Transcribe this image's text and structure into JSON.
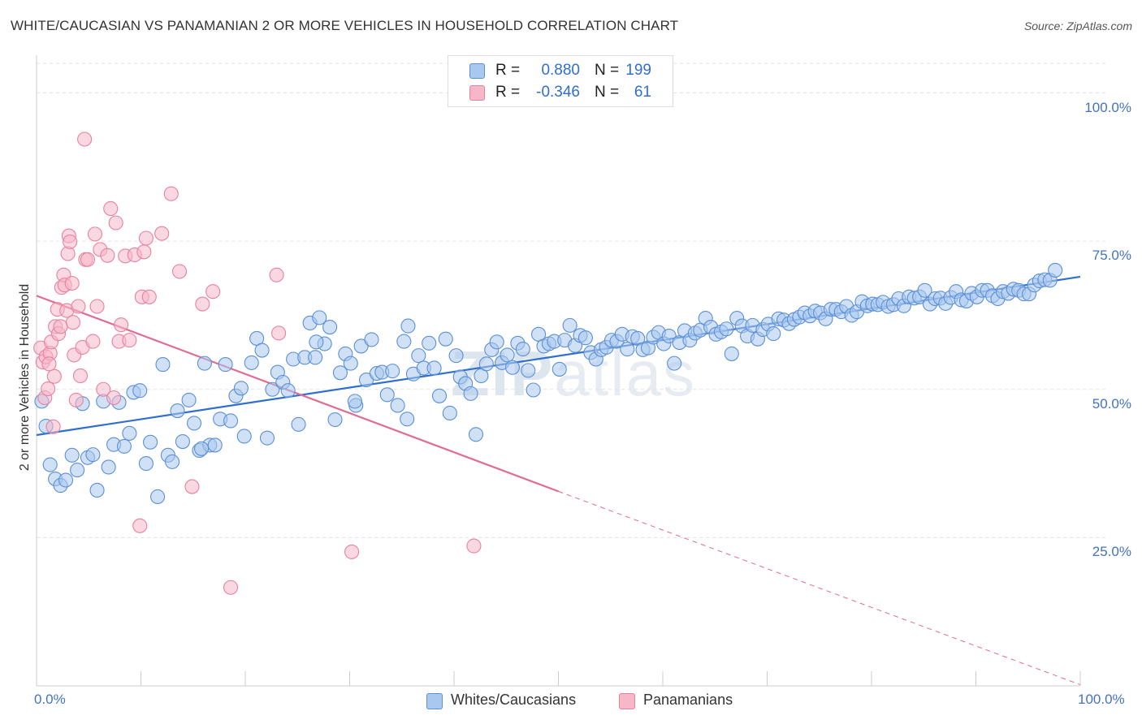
{
  "title": "WHITE/CAUCASIAN VS PANAMANIAN 2 OR MORE VEHICLES IN HOUSEHOLD CORRELATION CHART",
  "source": "Source: ZipAtlas.com",
  "watermark": {
    "zip": "ZIP",
    "atlas": "atlas"
  },
  "legend": {
    "rows": [
      {
        "r_label": "R =",
        "r_value": "0.880",
        "n_label": "N =",
        "n_value": "199",
        "color": "#a9c8ef"
      },
      {
        "r_label": "R =",
        "r_value": "-0.346",
        "n_label": "N =",
        "n_value": "61",
        "color": "#f6b8c9"
      }
    ]
  },
  "chart_data": {
    "type": "scatter",
    "title": "WHITE/CAUCASIAN VS PANAMANIAN 2 OR MORE VEHICLES IN HOUSEHOLD CORRELATION CHART",
    "xlabel": "",
    "ylabel": "2 or more Vehicles in Household",
    "xlim": [
      0,
      100
    ],
    "ylim": [
      0,
      105
    ],
    "x_tick_labels": [
      "0.0%",
      "100.0%"
    ],
    "y_tick_labels": [
      "100.0%",
      "75.0%",
      "50.0%",
      "25.0%"
    ],
    "y_ticks": [
      100,
      75,
      50,
      25
    ],
    "grid": "horizontal dashed",
    "legend_position": "bottom-center",
    "series": [
      {
        "name": "Whites/Caucasians",
        "color": "#a9c8ef",
        "stroke": "#5b8fd6",
        "trend": {
          "x0": 0,
          "y0": 42.3,
          "x1": 100,
          "y1": 69.0,
          "color": "#2f6fcf"
        },
        "points": [
          [
            0.5,
            48
          ],
          [
            0.9,
            43.8
          ],
          [
            1.3,
            37.3
          ],
          [
            1.8,
            34.9
          ],
          [
            2.3,
            33.8
          ],
          [
            2.8,
            34.7
          ],
          [
            3.4,
            38.9
          ],
          [
            3.9,
            36.4
          ],
          [
            4.4,
            47.6
          ],
          [
            4.9,
            38.5
          ],
          [
            5.4,
            39
          ],
          [
            5.8,
            33
          ],
          [
            6.4,
            48
          ],
          [
            6.9,
            36.9
          ],
          [
            7.4,
            40.7
          ],
          [
            7.9,
            47.8
          ],
          [
            8.4,
            40.4
          ],
          [
            8.9,
            42.6
          ],
          [
            9.3,
            49.5
          ],
          [
            9.9,
            49.8
          ],
          [
            10.5,
            37.5
          ],
          [
            10.9,
            41.1
          ],
          [
            11.6,
            31.9
          ],
          [
            12.1,
            54.2
          ],
          [
            12.6,
            38.9
          ],
          [
            13,
            37.8
          ],
          [
            13.5,
            46.4
          ],
          [
            14,
            41.2
          ],
          [
            14.6,
            48.2
          ],
          [
            15.1,
            44.3
          ],
          [
            15.6,
            39.7
          ],
          [
            16.1,
            54.4
          ],
          [
            16.6,
            40.6
          ],
          [
            17.1,
            40.6
          ],
          [
            17.6,
            45
          ],
          [
            18.1,
            54.2
          ],
          [
            18.6,
            44.7
          ],
          [
            19.1,
            48.9
          ],
          [
            19.6,
            50.2
          ],
          [
            19.9,
            42.1
          ],
          [
            20.6,
            54.5
          ],
          [
            21.1,
            58.6
          ],
          [
            21.6,
            56.6
          ],
          [
            22.1,
            41.8
          ],
          [
            22.6,
            50
          ],
          [
            23.1,
            52.9
          ],
          [
            23.6,
            51.2
          ],
          [
            24.1,
            49.8
          ],
          [
            24.6,
            55.1
          ],
          [
            25.1,
            44.1
          ],
          [
            25.7,
            55.4
          ],
          [
            26.2,
            61.2
          ],
          [
            26.7,
            55.4
          ],
          [
            27.1,
            62.1
          ],
          [
            27.6,
            57.7
          ],
          [
            28.1,
            60.5
          ],
          [
            28.6,
            44.9
          ],
          [
            29.1,
            52.8
          ],
          [
            29.6,
            56
          ],
          [
            30.1,
            54.4
          ],
          [
            30.6,
            47.3
          ],
          [
            31.1,
            57.3
          ],
          [
            31.6,
            51.6
          ],
          [
            32.1,
            58.4
          ],
          [
            32.6,
            52.7
          ],
          [
            33.1,
            52.9
          ],
          [
            33.6,
            49.1
          ],
          [
            34.1,
            53.1
          ],
          [
            34.6,
            47.3
          ],
          [
            35.2,
            58.1
          ],
          [
            35.6,
            60.7
          ],
          [
            36.1,
            52.6
          ],
          [
            36.6,
            55.7
          ],
          [
            37.1,
            53.6
          ],
          [
            37.6,
            57.8
          ],
          [
            38.1,
            53.6
          ],
          [
            38.6,
            48.9
          ],
          [
            39.2,
            58.5
          ],
          [
            39.6,
            46
          ],
          [
            40.2,
            55.7
          ],
          [
            40.6,
            52.1
          ],
          [
            41.1,
            51
          ],
          [
            41.6,
            49.3
          ],
          [
            42.1,
            42.4
          ],
          [
            42.6,
            52.3
          ],
          [
            43.1,
            54.3
          ],
          [
            43.6,
            56.7
          ],
          [
            44.1,
            58
          ],
          [
            44.6,
            54.5
          ],
          [
            45.1,
            55.8
          ],
          [
            45.6,
            53.7
          ],
          [
            46.1,
            57.8
          ],
          [
            46.6,
            56.8
          ],
          [
            47.1,
            53.2
          ],
          [
            47.6,
            49.9
          ],
          [
            48.1,
            59.3
          ],
          [
            48.6,
            57.3
          ],
          [
            49.1,
            57.7
          ],
          [
            49.6,
            58.1
          ],
          [
            50.1,
            53.4
          ],
          [
            50.6,
            58.3
          ],
          [
            51.1,
            60.8
          ],
          [
            51.6,
            57.4
          ],
          [
            52.1,
            59.1
          ],
          [
            52.6,
            58.7
          ],
          [
            53.1,
            56.2
          ],
          [
            53.6,
            55.1
          ],
          [
            54.1,
            56.7
          ],
          [
            54.6,
            57.1
          ],
          [
            55.1,
            58.3
          ],
          [
            55.6,
            58.1
          ],
          [
            56.1,
            59.3
          ],
          [
            56.6,
            56.8
          ],
          [
            57.1,
            58.9
          ],
          [
            57.6,
            58.6
          ],
          [
            58.1,
            56.7
          ],
          [
            58.6,
            57
          ],
          [
            59.1,
            58.8
          ],
          [
            59.6,
            59.6
          ],
          [
            60.1,
            57.7
          ],
          [
            60.6,
            59
          ],
          [
            61.1,
            54.4
          ],
          [
            61.6,
            57.9
          ],
          [
            62.1,
            59.9
          ],
          [
            62.6,
            58.3
          ],
          [
            63.1,
            59.5
          ],
          [
            63.6,
            60
          ],
          [
            64.1,
            62
          ],
          [
            64.6,
            60.5
          ],
          [
            65.1,
            59.3
          ],
          [
            65.6,
            59.7
          ],
          [
            66.1,
            60.2
          ],
          [
            66.6,
            56
          ],
          [
            67.1,
            62
          ],
          [
            67.6,
            60.7
          ],
          [
            68.1,
            59
          ],
          [
            68.6,
            60.8
          ],
          [
            69.1,
            58.5
          ],
          [
            69.6,
            60.1
          ],
          [
            70.1,
            61
          ],
          [
            70.6,
            59.4
          ],
          [
            71.1,
            61.9
          ],
          [
            71.6,
            61.7
          ],
          [
            72.1,
            61.1
          ],
          [
            72.6,
            61.8
          ],
          [
            73.1,
            62.2
          ],
          [
            73.6,
            62.9
          ],
          [
            74.1,
            62.4
          ],
          [
            74.6,
            63.2
          ],
          [
            75.1,
            62.9
          ],
          [
            75.6,
            61.9
          ],
          [
            76.1,
            63.5
          ],
          [
            76.6,
            63.5
          ],
          [
            77.1,
            63.1
          ],
          [
            77.6,
            64
          ],
          [
            78.1,
            62.5
          ],
          [
            78.6,
            63.1
          ],
          [
            79.1,
            64.8
          ],
          [
            79.6,
            64.1
          ],
          [
            80.1,
            64.4
          ],
          [
            80.6,
            64.3
          ],
          [
            81.1,
            64.7
          ],
          [
            81.6,
            64
          ],
          [
            82.1,
            64.3
          ],
          [
            82.6,
            65.3
          ],
          [
            83.1,
            64.1
          ],
          [
            83.6,
            65.6
          ],
          [
            84.1,
            65.4
          ],
          [
            84.6,
            65.6
          ],
          [
            85.1,
            66.7
          ],
          [
            85.6,
            64.4
          ],
          [
            86.1,
            65.3
          ],
          [
            86.6,
            65.4
          ],
          [
            87.1,
            64.5
          ],
          [
            87.6,
            65.5
          ],
          [
            88.1,
            66.5
          ],
          [
            88.6,
            65.1
          ],
          [
            89.1,
            64.9
          ],
          [
            89.6,
            66.2
          ],
          [
            90.1,
            65.6
          ],
          [
            90.6,
            66.7
          ],
          [
            91.1,
            66.7
          ],
          [
            91.6,
            65.8
          ],
          [
            92.1,
            65.3
          ],
          [
            92.6,
            66.5
          ],
          [
            93.1,
            66.2
          ],
          [
            93.6,
            66.9
          ],
          [
            94.1,
            66.7
          ],
          [
            94.6,
            66.1
          ],
          [
            95.1,
            66.1
          ],
          [
            95.6,
            67.6
          ],
          [
            96.1,
            68.3
          ],
          [
            96.6,
            68.5
          ],
          [
            97.1,
            68.4
          ],
          [
            97.6,
            70.1
          ],
          [
            30.5,
            48
          ],
          [
            35.5,
            45
          ],
          [
            15.8,
            40
          ],
          [
            26.8,
            58
          ]
        ]
      },
      {
        "name": "Panamanians",
        "color": "#f6b8c9",
        "stroke": "#e8819f",
        "trend": {
          "x0": 0,
          "y0": 65.8,
          "x1": 50,
          "y1": 32.8,
          "color": "#e06b93"
        },
        "trend_dashed": {
          "x0": 50,
          "y0": 32.8,
          "x1": 100,
          "y1": 0.2
        },
        "points": [
          [
            0.4,
            57
          ],
          [
            0.6,
            54.6
          ],
          [
            0.8,
            48.6
          ],
          [
            0.9,
            55.5
          ],
          [
            1.1,
            50.1
          ],
          [
            1.3,
            56.1
          ],
          [
            1.4,
            58
          ],
          [
            1.6,
            43.7
          ],
          [
            1.7,
            52.2
          ],
          [
            1.8,
            60.6
          ],
          [
            2,
            63.5
          ],
          [
            2.1,
            59.4
          ],
          [
            2.3,
            60.6
          ],
          [
            2.4,
            67.2
          ],
          [
            2.6,
            69.3
          ],
          [
            2.7,
            67.6
          ],
          [
            2.9,
            63.3
          ],
          [
            3,
            72.9
          ],
          [
            3.1,
            75.9
          ],
          [
            3.2,
            74.9
          ],
          [
            3.4,
            67.9
          ],
          [
            3.5,
            61.3
          ],
          [
            3.6,
            55.8
          ],
          [
            3.8,
            48.2
          ],
          [
            4,
            64
          ],
          [
            4.2,
            52.3
          ],
          [
            4.4,
            57.1
          ],
          [
            4.6,
            92.2
          ],
          [
            4.7,
            71.9
          ],
          [
            4.9,
            71.9
          ],
          [
            5.4,
            58.1
          ],
          [
            5.6,
            76.2
          ],
          [
            5.8,
            64
          ],
          [
            6.1,
            73.6
          ],
          [
            6.4,
            50
          ],
          [
            6.8,
            72.6
          ],
          [
            7.1,
            80.5
          ],
          [
            7.4,
            48.6
          ],
          [
            7.6,
            78.1
          ],
          [
            7.9,
            58.1
          ],
          [
            8.1,
            60.9
          ],
          [
            8.5,
            72.5
          ],
          [
            8.9,
            58.3
          ],
          [
            9.4,
            72.7
          ],
          [
            9.9,
            27
          ],
          [
            10.1,
            65.6
          ],
          [
            10.3,
            73.2
          ],
          [
            10.5,
            75.5
          ],
          [
            10.8,
            65.6
          ],
          [
            12,
            76.3
          ],
          [
            12.9,
            83
          ],
          [
            13.7,
            69.9
          ],
          [
            14.9,
            33.6
          ],
          [
            15.9,
            64.4
          ],
          [
            16.9,
            66.5
          ],
          [
            18.6,
            16.6
          ],
          [
            23,
            69.3
          ],
          [
            23.2,
            59.5
          ],
          [
            30.2,
            22.6
          ],
          [
            41.9,
            23.6
          ],
          [
            1.2,
            54.3
          ]
        ]
      }
    ]
  },
  "bottom_legend": {
    "items": [
      {
        "label": "Whites/Caucasians",
        "color": "#a9c8ef"
      },
      {
        "label": "Panamanians",
        "color": "#f6b8c9"
      }
    ]
  }
}
